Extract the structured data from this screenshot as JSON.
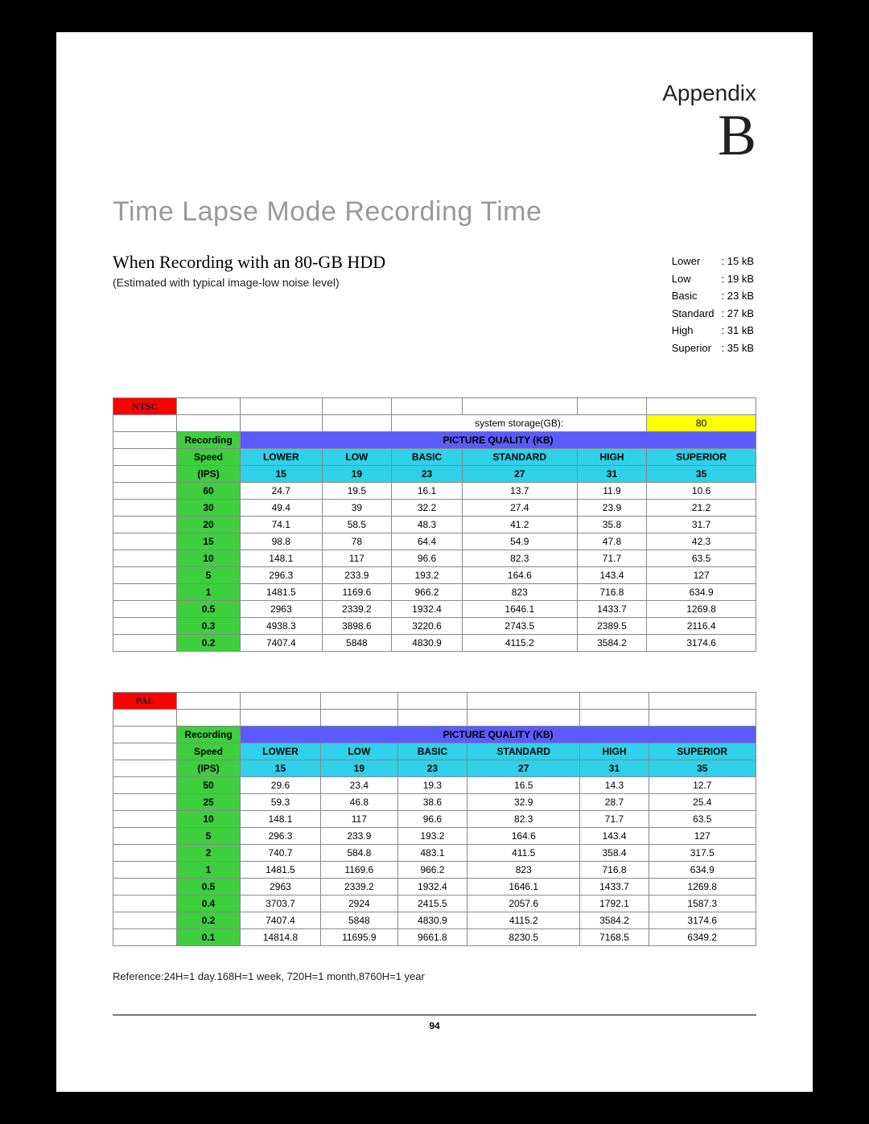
{
  "appendix": {
    "label": "Appendix",
    "letter": "B"
  },
  "title": "Time Lapse Mode Recording Time",
  "subtitle": "When Recording with an 80-GB HDD",
  "subnote": "(Estimated with typical image-low noise level)",
  "kb_legend": [
    {
      "label": "Lower",
      "value": ": 15 kB"
    },
    {
      "label": "Low",
      "value": ": 19 kB"
    },
    {
      "label": "Basic",
      "value": ": 23 kB"
    },
    {
      "label": "Standard",
      "value": ": 27 kB"
    },
    {
      "label": "High",
      "value": ": 31 kB"
    },
    {
      "label": "Superior",
      "value": ": 35 kB"
    }
  ],
  "storage_label": "system storage(GB):",
  "storage_value": "80",
  "pq_header": "PICTURE QUALITY (KB)",
  "col_heads": {
    "rec": "Recording",
    "speed": "Speed",
    "ips": "(IPS)"
  },
  "quality_cols": [
    "LOWER",
    "LOW",
    "BASIC",
    "STANDARD",
    "HIGH",
    "SUPERIOR"
  ],
  "quality_kb": [
    "15",
    "19",
    "23",
    "27",
    "31",
    "35"
  ],
  "ntsc": {
    "label": "NTSC",
    "rows": [
      {
        "speed": "60",
        "vals": [
          "24.7",
          "19.5",
          "16.1",
          "13.7",
          "11.9",
          "10.6"
        ]
      },
      {
        "speed": "30",
        "vals": [
          "49.4",
          "39",
          "32.2",
          "27.4",
          "23.9",
          "21.2"
        ]
      },
      {
        "speed": "20",
        "vals": [
          "74.1",
          "58.5",
          "48.3",
          "41.2",
          "35.8",
          "31.7"
        ]
      },
      {
        "speed": "15",
        "vals": [
          "98.8",
          "78",
          "64.4",
          "54.9",
          "47.8",
          "42.3"
        ]
      },
      {
        "speed": "10",
        "vals": [
          "148.1",
          "117",
          "96.6",
          "82.3",
          "71.7",
          "63.5"
        ]
      },
      {
        "speed": "5",
        "vals": [
          "296.3",
          "233.9",
          "193.2",
          "164.6",
          "143.4",
          "127"
        ]
      },
      {
        "speed": "1",
        "vals": [
          "1481.5",
          "1169.6",
          "966.2",
          "823",
          "716.8",
          "634.9"
        ]
      },
      {
        "speed": "0.5",
        "vals": [
          "2963",
          "2339.2",
          "1932.4",
          "1646.1",
          "1433.7",
          "1269.8"
        ]
      },
      {
        "speed": "0.3",
        "vals": [
          "4938.3",
          "3898.6",
          "3220.6",
          "2743.5",
          "2389.5",
          "2116.4"
        ]
      },
      {
        "speed": "0.2",
        "vals": [
          "7407.4",
          "5848",
          "4830.9",
          "4115.2",
          "3584.2",
          "3174.6"
        ]
      }
    ]
  },
  "pal": {
    "label": "PAL",
    "rows": [
      {
        "speed": "50",
        "vals": [
          "29.6",
          "23.4",
          "19.3",
          "16.5",
          "14.3",
          "12.7"
        ]
      },
      {
        "speed": "25",
        "vals": [
          "59.3",
          "46.8",
          "38.6",
          "32.9",
          "28.7",
          "25.4"
        ]
      },
      {
        "speed": "10",
        "vals": [
          "148.1",
          "117",
          "96.6",
          "82.3",
          "71.7",
          "63.5"
        ]
      },
      {
        "speed": "5",
        "vals": [
          "296.3",
          "233.9",
          "193.2",
          "164.6",
          "143.4",
          "127"
        ]
      },
      {
        "speed": "2",
        "vals": [
          "740.7",
          "584.8",
          "483.1",
          "411.5",
          "358.4",
          "317.5"
        ]
      },
      {
        "speed": "1",
        "vals": [
          "1481.5",
          "1169.6",
          "966.2",
          "823",
          "716.8",
          "634.9"
        ]
      },
      {
        "speed": "0.5",
        "vals": [
          "2963",
          "2339.2",
          "1932.4",
          "1646.1",
          "1433.7",
          "1269.8"
        ]
      },
      {
        "speed": "0.4",
        "vals": [
          "3703.7",
          "2924",
          "2415.5",
          "2057.6",
          "1792.1",
          "1587.3"
        ]
      },
      {
        "speed": "0.2",
        "vals": [
          "7407.4",
          "5848",
          "4830.9",
          "4115.2",
          "3584.2",
          "3174.6"
        ]
      },
      {
        "speed": "0.1",
        "vals": [
          "14814.8",
          "11695.9",
          "9661.8",
          "8230.5",
          "7168.5",
          "6349.2"
        ]
      }
    ]
  },
  "reference": "Reference:24H=1 day.168H=1 week, 720H=1 month,8760H=1 year",
  "page_number": "94",
  "colors": {
    "red": "#ff0000",
    "yellow": "#ffff00",
    "green": "#3dcf3d",
    "cyan": "#2fd0e8",
    "pq_blue": "#5b5bff",
    "title_gray": "#999999"
  }
}
